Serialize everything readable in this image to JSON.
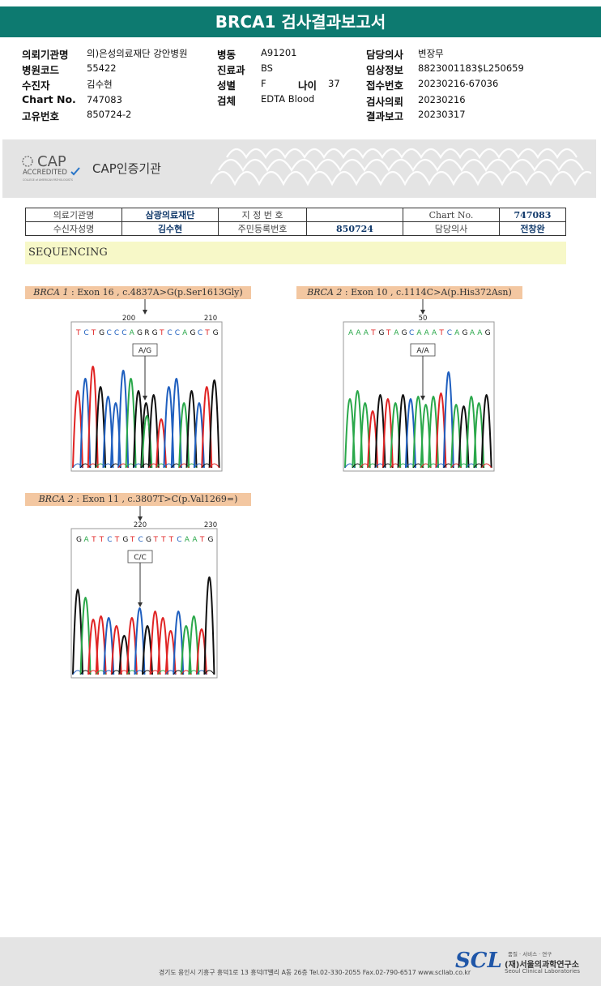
{
  "title": "BRCA1 검사결과보고서",
  "header": {
    "hospital_label": "의뢰기관명",
    "hospital": "의)은성의료재단 강안병원",
    "code_label": "병원코드",
    "code": "55422",
    "name_label": "수진자",
    "name": "김수현",
    "chart_label": "Chart No.",
    "chart": "747083",
    "unique_label": "고유번호",
    "unique": "850724-2",
    "ward_label": "병동",
    "ward": "A91201",
    "dept_label": "진료과",
    "dept": "BS",
    "sex_label": "성별",
    "sex": "F",
    "age_label": "나이",
    "age": "37",
    "specimen_label": "검체",
    "specimen": "EDTA Blood",
    "doctor_label": "담당의사",
    "doctor": "변장무",
    "clinical_label": "임상정보",
    "clinical": "8823001183$L250659",
    "receipt_label": "접수번호",
    "receipt": "20230216-67036",
    "request_label": "검사의뢰",
    "request": "20230216",
    "report_label": "결과보고",
    "report": "20230317"
  },
  "cap": {
    "logo_big": "CAP",
    "logo_small": "ACCREDITED",
    "logo_tiny": "COLLEGE of AMERICAN PATHOLOGISTS",
    "cert": "CAP인증기관"
  },
  "info_table": {
    "r1": [
      "의료기관명",
      "삼광의료재단",
      "지 정 번 호",
      "",
      "Chart No.",
      "747083"
    ],
    "r2": [
      "수신자성명",
      "김수현",
      "주민등록번호",
      "850724",
      "담당의사",
      "전창완"
    ]
  },
  "section": "SEQUENCING",
  "variants": [
    {
      "gene": "BRCA 1",
      "desc": " : Exon 16 , c.4837A>G(p.Ser1613Gly)",
      "pos1": "200",
      "pos2": "210",
      "call": "A/G",
      "bases": "TCTGCCCAGRGTCCAGCTG"
    },
    {
      "gene": "BRCA 2",
      "desc": " : Exon 10 , c.1114C>A(p.His372Asn)",
      "pos1": "50",
      "pos2": "",
      "call": "A/A",
      "bases": "AAATGTAGCAAATCAGAAG"
    },
    {
      "gene": "BRCA 2",
      "desc": " : Exon 11 , c.3807T>C(p.Val1269=)",
      "pos1": "220",
      "pos2": "230",
      "call": "C/C",
      "bases": "GATTCTGTCGTTTCAATG"
    }
  ],
  "footer": {
    "address": "경기도 용인시 기흥구 흥덕1로 13 흥덕IT밸리 A동 26층  Tel.02-330-2055  Fax.02-790-6517  www.scllab.co.kr",
    "logo": "SCL",
    "tagline": "품질 · 서비스 · 연구",
    "org": "(재)서울의과학연구소",
    "org_en": "Seoul Clinical Laboratories"
  },
  "colors": {
    "A": "#2aa84a",
    "C": "#1f5fbf",
    "G": "#111111",
    "T": "#e02424"
  }
}
